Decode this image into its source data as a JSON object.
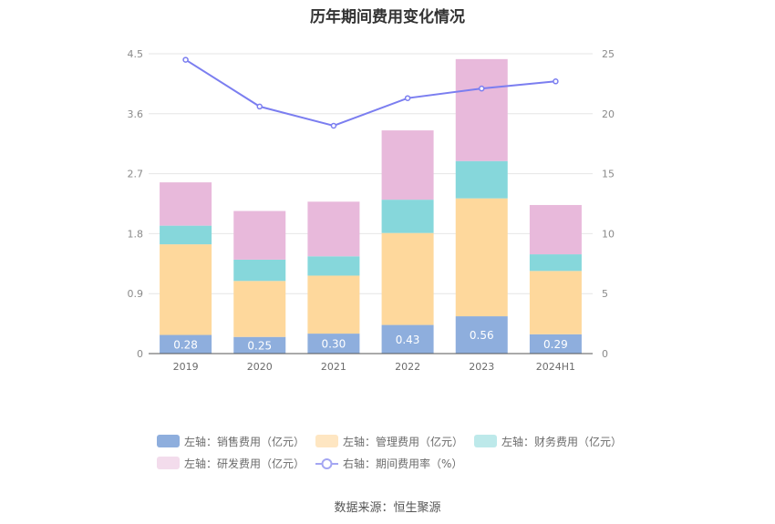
{
  "title": "历年期间费用变化情况",
  "source": "数据来源：恒生聚源",
  "chart_data": {
    "type": "bar",
    "stacked": true,
    "categories": [
      "2019",
      "2020",
      "2021",
      "2022",
      "2023",
      "2024H1"
    ],
    "left_axis": {
      "ticks": [
        "0",
        "0.9",
        "1.8",
        "2.7",
        "3.6",
        "4.5"
      ],
      "ylim": [
        0,
        4.5
      ]
    },
    "right_axis": {
      "ticks": [
        "0",
        "5",
        "10",
        "15",
        "20",
        "25"
      ],
      "ylim": [
        0,
        25
      ]
    },
    "series": [
      {
        "name": "左轴：销售费用（亿元）",
        "axis": "left",
        "color": "#8eaedd",
        "values": [
          0.28,
          0.25,
          0.3,
          0.43,
          0.56,
          0.29
        ],
        "labels": [
          "0.28",
          "0.25",
          "0.30",
          "0.43",
          "0.56",
          "0.29"
        ]
      },
      {
        "name": "左轴：管理费用（亿元）",
        "axis": "left",
        "color": "#fed89c",
        "values": [
          1.36,
          0.84,
          0.87,
          1.38,
          1.77,
          0.95
        ]
      },
      {
        "name": "左轴：财务费用（亿元）",
        "axis": "left",
        "color": "#86d7db",
        "values": [
          0.28,
          0.32,
          0.29,
          0.5,
          0.56,
          0.25
        ]
      },
      {
        "name": "左轴：研发费用（亿元）",
        "axis": "left",
        "color": "#e8b9db",
        "values": [
          0.65,
          0.73,
          0.82,
          1.04,
          1.53,
          0.74
        ]
      },
      {
        "name": "右轴：期间费用率（%）",
        "axis": "right",
        "type": "line",
        "color": "#7b7ef0",
        "values": [
          24.5,
          20.6,
          19.0,
          21.3,
          22.1,
          22.7
        ]
      }
    ],
    "grid": true,
    "legend_position": "bottom"
  }
}
